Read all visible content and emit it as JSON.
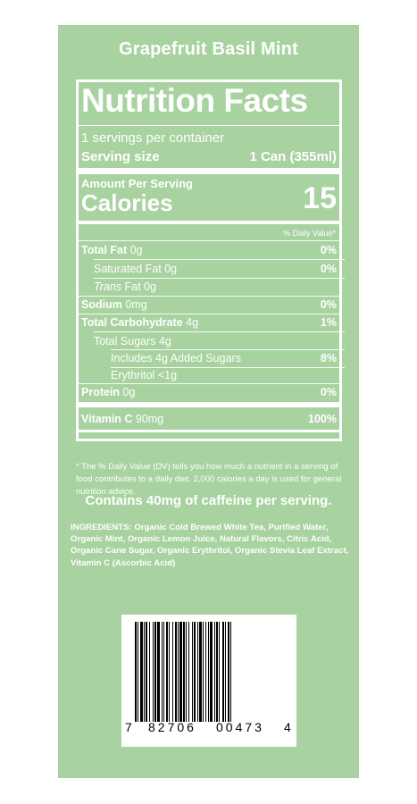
{
  "product_name": "Grapefruit Basil Mint",
  "label": {
    "title": "Nutrition Facts",
    "servings_per_container": "1 servings per container",
    "serving_size_label": "Serving size",
    "serving_size_value": "1 Can (355ml)",
    "amount_per_serving": "Amount Per Serving",
    "calories_label": "Calories",
    "calories_value": "15",
    "daily_value_header": "% Daily Value*",
    "nutrients": [
      {
        "name": "Total Fat",
        "amount": "0g",
        "dv": "0%"
      },
      {
        "name": "Saturated Fat",
        "amount": "0g",
        "dv": "0%"
      },
      {
        "name_italic": "Trans",
        "name": "Fat",
        "amount": "0g",
        "dv": ""
      },
      {
        "name": "Sodium",
        "amount": "0mg",
        "dv": "0%"
      },
      {
        "name": "Total Carbohydrate",
        "amount": "4g",
        "dv": "1%"
      },
      {
        "name": "Total Sugars",
        "amount": "4g",
        "dv": ""
      },
      {
        "name": "Includes 4g Added Sugars",
        "amount": "",
        "dv": "8%"
      },
      {
        "name": "Erythritol",
        "amount": "<1g",
        "dv": ""
      },
      {
        "name": "Protein",
        "amount": "0g",
        "dv": "0%"
      },
      {
        "name": "Vitamin C",
        "amount": "90mg",
        "dv": "100%"
      }
    ],
    "footnote": "* The % Daily Value (DV) tells you how much a nutrient in a serving of food contributes to a daily diet. 2,000 calories a day is used for general nutrition advice."
  },
  "caffeine_note": "Contains 40mg of caffeine per serving.",
  "ingredients": "INGREDIENTS: Organic Cold Brewed White Tea, Purified Water, Organic Mint, Organic Lemon Juice, Natural Flavors, Citric Acid, Organic Cane Sugar, Organic Erythritol, Organic Stevia Leaf Extract, Vitamin C (Ascorbic Acid)",
  "barcode": {
    "digit_first": "7",
    "group_left": "82706",
    "group_right": "00473",
    "digit_last": "4"
  },
  "colors": {
    "panel": "#a8d2a0",
    "text": "#ffffff"
  }
}
